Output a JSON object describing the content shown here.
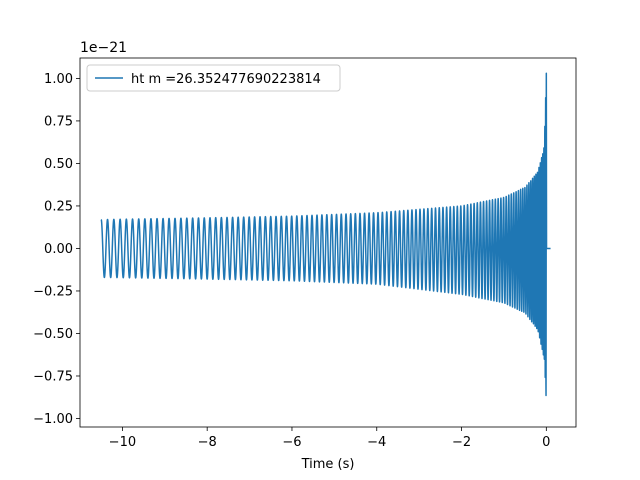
{
  "chart_data": {
    "type": "line",
    "xlabel": "Time (s)",
    "ylabel": "",
    "y_offset_label": "1e−21",
    "y_scale": "1e-21",
    "xlim": [
      -11.0,
      0.7
    ],
    "ylim": [
      -1.05,
      1.12
    ],
    "xticks": [
      -10,
      -8,
      -6,
      -4,
      -2,
      0
    ],
    "xtick_labels": [
      "−10",
      "−8",
      "−6",
      "−4",
      "−2",
      "0"
    ],
    "yticks": [
      1.0,
      0.75,
      0.5,
      0.25,
      0.0,
      -0.25,
      -0.5,
      -0.75,
      -1.0
    ],
    "ytick_labels": [
      "1.00",
      "0.75",
      "0.50",
      "0.25",
      "0.00",
      "−0.25",
      "−0.50",
      "−0.75",
      "−1.00"
    ],
    "grid": false,
    "legend": "upper left",
    "series": [
      {
        "name": "ht m =26.352477690223814",
        "color": "#1f77b4",
        "t_start": -10.5,
        "t_merger": 0.0,
        "t_end": 0.1,
        "envelope": {
          "t": [
            -10.5,
            -8,
            -6,
            -4,
            -2,
            -1,
            -0.5,
            -0.2,
            -0.05,
            0.0,
            0.02,
            0.1
          ],
          "upper": [
            0.17,
            0.18,
            0.19,
            0.21,
            0.25,
            0.3,
            0.36,
            0.45,
            0.6,
            1.03,
            0.0,
            0.0
          ],
          "lower": [
            -0.17,
            -0.18,
            -0.19,
            -0.21,
            -0.27,
            -0.32,
            -0.38,
            -0.48,
            -0.65,
            -0.93,
            0.0,
            0.0
          ]
        },
        "cycles_visible": 110
      }
    ]
  }
}
